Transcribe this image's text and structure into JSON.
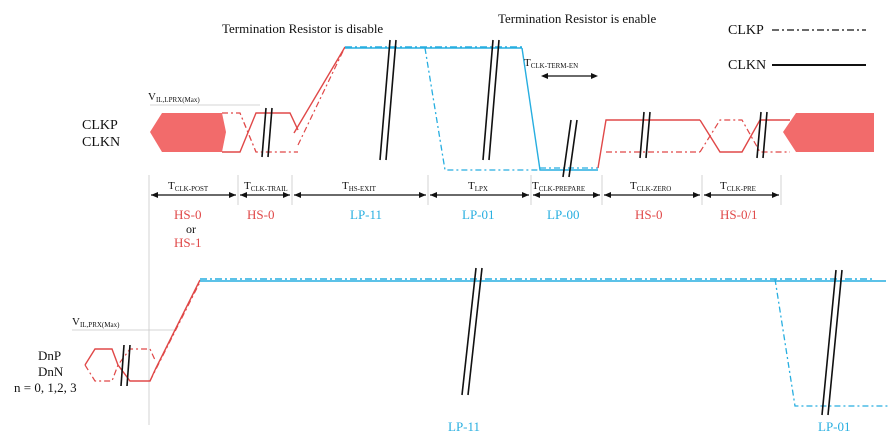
{
  "colors": {
    "hs_red": "#e04848",
    "lp_cyan": "#27aee0",
    "black": "#111111",
    "gray": "#7f7f7f",
    "fill_red": "#f26b6b"
  },
  "header": {
    "term_disable": "Termination Resistor is disable",
    "term_enable": "Termination Resistor is enable"
  },
  "legend": {
    "clkp": "CLKP",
    "clkn": "CLKN"
  },
  "clock": {
    "label_p": "CLKP",
    "label_n": "CLKN",
    "vil_main": "V",
    "vil_sub": "IL,LPRX(Max)",
    "term_en_main": "T",
    "term_en_sub": "CLK-TERM-EN"
  },
  "timings": [
    {
      "main": "T",
      "sub": "CLK-POST"
    },
    {
      "main": "T",
      "sub": "CLK-TRAIL"
    },
    {
      "main": "T",
      "sub": "HS-EXIT"
    },
    {
      "main": "T",
      "sub": "LPX"
    },
    {
      "main": "T",
      "sub": "CLK-PREPARE"
    },
    {
      "main": "T",
      "sub": "CLK-ZERO"
    },
    {
      "main": "T",
      "sub": "CLK-PRE"
    }
  ],
  "states": {
    "hs0_or_1_line1": "HS-0",
    "hs0_or_1_line2": "or",
    "hs0_or_1_line3": "HS-1",
    "trail": "HS-0",
    "exit": "LP-11",
    "lpx": "LP-01",
    "prepare": "LP-00",
    "zero": "HS-0",
    "pre": "HS-0/1"
  },
  "data": {
    "vil_main": "V",
    "vil_sub": "IL,PRX(Max)",
    "label_p": "DnP",
    "label_n": "DnN",
    "label_range": "n = 0, 1,2, 3",
    "state_lp11": "LP-11",
    "state_lp01": "LP-01"
  }
}
